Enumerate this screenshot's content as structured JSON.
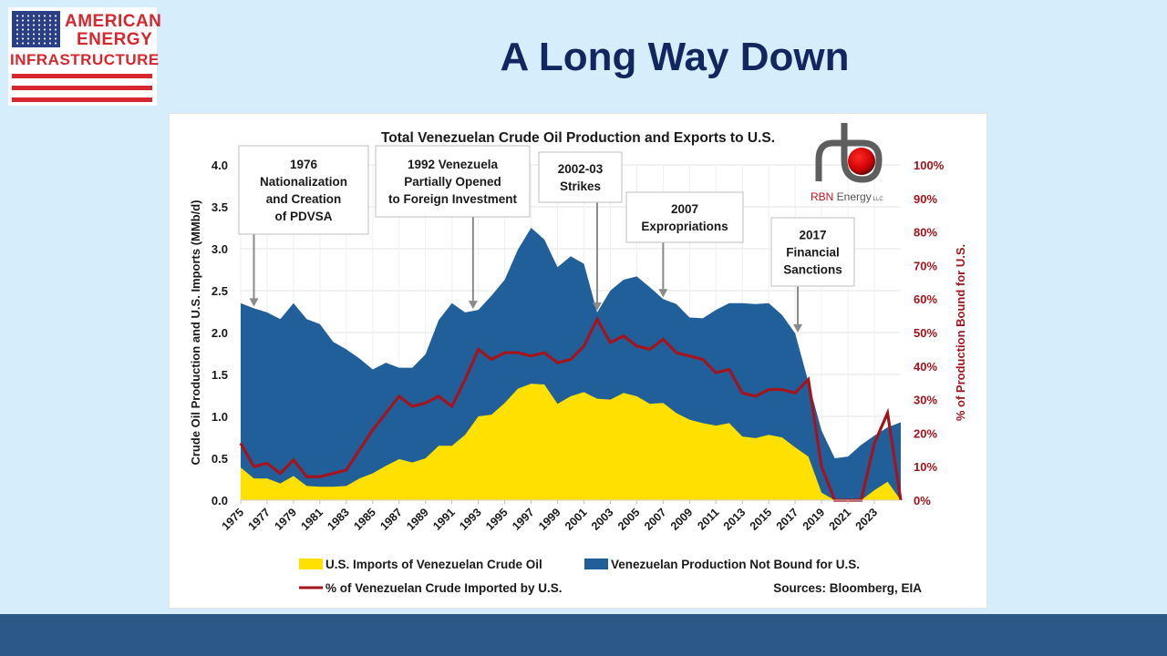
{
  "logo": {
    "line1": "AMERICAN",
    "line2": "ENERGY",
    "line3": "INFRASTRUCTURE"
  },
  "slide": {
    "title": "A Long Way Down"
  },
  "colors": {
    "background": "#D6EEFB",
    "title": "#12275F",
    "footer": "#2B5887",
    "imports": "#FFE000",
    "not_bound": "#215F9A",
    "pct_line": "#A3141C",
    "logo_red": "#D7262D",
    "logo_blue": "#2A3F86"
  },
  "rbn_logo": {
    "text_rbn": "RBN",
    "text_energy": " Energy",
    "text_llc": "LLC"
  },
  "chart_data": {
    "type": "area",
    "title": "Total Venezuelan Crude Oil Production and Exports to U.S.",
    "xlabel": "",
    "ylabel": "Crude Oil Production and U.S. Imports (MMb/d)",
    "y2label": "% of Production Bound for U.S.",
    "ylim": [
      0,
      4.0
    ],
    "y2lim": [
      0,
      100
    ],
    "yticks": [
      "0.0",
      "0.5",
      "1.0",
      "1.5",
      "2.0",
      "2.5",
      "3.0",
      "3.5",
      "4.0"
    ],
    "y2ticks": [
      "0%",
      "10%",
      "20%",
      "30%",
      "40%",
      "50%",
      "60%",
      "70%",
      "80%",
      "90%",
      "100%"
    ],
    "xticks": [
      "1975",
      "1977",
      "1979",
      "1981",
      "1983",
      "1985",
      "1987",
      "1989",
      "1991",
      "1993",
      "1995",
      "1997",
      "1999",
      "2001",
      "2003",
      "2005",
      "2007",
      "2009",
      "2011",
      "2013",
      "2015",
      "2017",
      "2019",
      "2021",
      "2023"
    ],
    "grid": true,
    "stacked": true,
    "x": [
      1975,
      1976,
      1977,
      1978,
      1979,
      1980,
      1981,
      1982,
      1983,
      1984,
      1985,
      1986,
      1987,
      1988,
      1989,
      1990,
      1991,
      1992,
      1993,
      1994,
      1995,
      1996,
      1997,
      1998,
      1999,
      2000,
      2001,
      2002,
      2003,
      2004,
      2005,
      2006,
      2007,
      2008,
      2009,
      2010,
      2011,
      2012,
      2013,
      2014,
      2015,
      2016,
      2017,
      2018,
      2019,
      2020,
      2021,
      2022,
      2023,
      2024,
      2025
    ],
    "series": [
      {
        "name": "U.S. Imports of Venezuelan Crude Oil",
        "type": "area",
        "axis": "left",
        "values": [
          0.39,
          0.26,
          0.26,
          0.2,
          0.29,
          0.17,
          0.16,
          0.16,
          0.17,
          0.26,
          0.32,
          0.41,
          0.49,
          0.45,
          0.5,
          0.65,
          0.65,
          0.78,
          1.0,
          1.02,
          1.16,
          1.33,
          1.39,
          1.38,
          1.15,
          1.24,
          1.29,
          1.21,
          1.2,
          1.28,
          1.24,
          1.15,
          1.16,
          1.04,
          0.96,
          0.92,
          0.89,
          0.92,
          0.76,
          0.74,
          0.78,
          0.75,
          0.63,
          0.52,
          0.09,
          0.0,
          0.0,
          0.0,
          0.12,
          0.22,
          0.0
        ]
      },
      {
        "name": "Venezuelan Production Not Bound for U.S.",
        "type": "area",
        "axis": "left",
        "values": [
          1.96,
          2.03,
          1.98,
          1.96,
          2.06,
          1.99,
          1.94,
          1.73,
          1.63,
          1.43,
          1.24,
          1.23,
          1.09,
          1.13,
          1.24,
          1.5,
          1.7,
          1.46,
          1.27,
          1.42,
          1.47,
          1.66,
          1.86,
          1.73,
          1.63,
          1.67,
          1.53,
          1.03,
          1.3,
          1.35,
          1.43,
          1.39,
          1.24,
          1.3,
          1.22,
          1.25,
          1.38,
          1.43,
          1.59,
          1.6,
          1.57,
          1.46,
          1.36,
          0.89,
          0.74,
          0.5,
          0.52,
          0.66,
          0.65,
          0.65,
          0.93
        ]
      },
      {
        "name": "% of Venezuelan Crude Imported by U.S.",
        "type": "line",
        "axis": "right",
        "values": [
          17,
          10,
          11,
          8,
          12,
          7,
          7,
          8,
          9,
          15,
          21,
          26,
          31,
          28,
          29,
          31,
          28,
          36,
          45,
          42,
          44,
          44,
          43,
          44,
          41,
          42,
          46,
          54,
          47,
          49,
          46,
          45,
          48,
          44,
          43,
          42,
          38,
          39,
          32,
          31,
          33,
          33,
          32,
          36,
          10,
          0,
          0,
          0,
          17,
          26,
          0
        ]
      }
    ],
    "annotations": [
      {
        "year": 1976,
        "value": 2.29,
        "lines": [
          "1976",
          "Nationalization",
          "and Creation",
          "of PDVSA"
        ]
      },
      {
        "year": 1992.6,
        "value": 2.26,
        "lines": [
          "1992 Venezuela",
          "Partially Opened",
          "to Foreign Investment"
        ]
      },
      {
        "year": 2002,
        "value": 2.24,
        "lines": [
          "2002-03",
          "Strikes"
        ]
      },
      {
        "year": 2007,
        "value": 2.4,
        "lines": [
          "2007",
          "Expropriations"
        ]
      },
      {
        "year": 2017.2,
        "value": 1.98,
        "lines": [
          "2017",
          "Financial",
          "Sanctions"
        ]
      }
    ],
    "legend": {
      "placement": "bottom",
      "items": [
        "U.S. Imports of Venezuelan Crude Oil",
        "Venezuelan Production Not Bound for U.S.",
        "% of Venezuelan Crude Imported by U.S."
      ]
    },
    "source": "Sources: Bloomberg, EIA"
  }
}
